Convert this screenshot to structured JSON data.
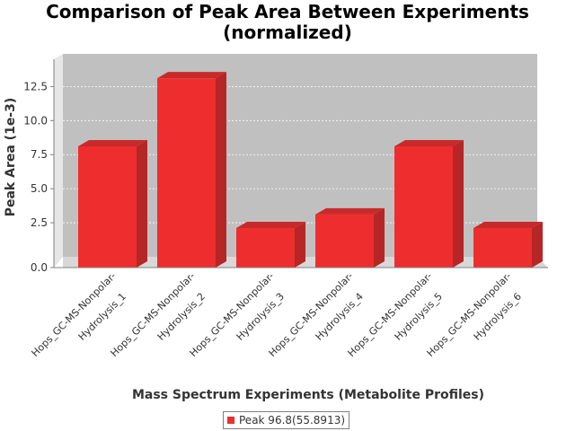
{
  "title_line1": "Comparison of Peak Area Between Experiments",
  "title_line2": "(normalized)",
  "chart_data": {
    "type": "bar",
    "title": "Comparison of Peak Area Between Experiments (normalized)",
    "xlabel": "Mass Spectrum Experiments (Metabolite Profiles)",
    "ylabel": "Peak Area (1e-3)",
    "categories": [
      "Hops_GC-MS-Nonpolar-Hydrolysis_1",
      "Hops_GC-MS-Nonpolar-Hydrolysis_2",
      "Hops_GC-MS-Nonpolar-Hydrolysis_3",
      "Hops_GC-MS-Nonpolar-Hydrolysis_4",
      "Hops_GC-MS-Nonpolar-Hydrolysis_5",
      "Hops_GC-MS-Nonpolar-Hydrolysis_6"
    ],
    "category_label_lines": [
      [
        "Hops_GC-MS-Nonpolar-",
        "Hydrolysis_1"
      ],
      [
        "Hops_GC-MS-Nonpolar-",
        "Hydrolysis_2"
      ],
      [
        "Hops_GC-MS-Nonpolar-",
        "Hydrolysis_3"
      ],
      [
        "Hops_GC-MS-Nonpolar-",
        "Hydrolysis_4"
      ],
      [
        "Hops_GC-MS-Nonpolar-",
        "Hydrolysis_5"
      ],
      [
        "Hops_GC-MS-Nonpolar-",
        "Hydrolysis_6"
      ]
    ],
    "series": [
      {
        "name": "Peak 96.8(55.8913)",
        "color": "#ee2e2e",
        "values": [
          8.9,
          13.9,
          2.9,
          3.9,
          8.9,
          2.9
        ]
      }
    ],
    "yticks": [
      "0.0",
      "2.5",
      "5.0",
      "7.5",
      "10.0",
      "12.5"
    ],
    "ytick_values": [
      0,
      2.5,
      5,
      7.5,
      10,
      12.5
    ],
    "ylim": [
      0,
      14.9
    ],
    "grid": true,
    "legend_position": "bottom",
    "plot_background": "#c0c0c0"
  }
}
